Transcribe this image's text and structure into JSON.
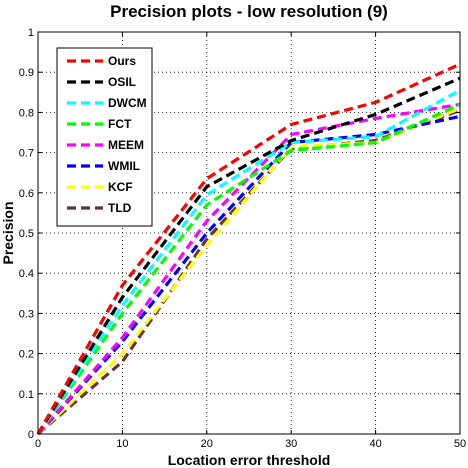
{
  "chart_data": {
    "type": "line",
    "title": "Precision plots - low resolution (9)",
    "xlabel": "Location error threshold",
    "ylabel": "Precision",
    "xlim": [
      0,
      50
    ],
    "ylim": [
      0,
      1
    ],
    "x_ticks": [
      "0",
      "10",
      "20",
      "30",
      "40",
      "50"
    ],
    "y_ticks": [
      "0",
      "0.1",
      "0.2",
      "0.3",
      "0.4",
      "0.5",
      "0.6",
      "0.7",
      "0.8",
      "0.9",
      "1"
    ],
    "grid": true,
    "legend_position": "top-left",
    "x": [
      0,
      10,
      20,
      30,
      40,
      50
    ],
    "series": [
      {
        "name": "Ours",
        "color": "#ff0000",
        "values": [
          0.0,
          0.37,
          0.635,
          0.77,
          0.825,
          0.92
        ]
      },
      {
        "name": "OSIL",
        "color": "#000000",
        "values": [
          0.0,
          0.34,
          0.615,
          0.73,
          0.795,
          0.885
        ]
      },
      {
        "name": "DWCM",
        "color": "#00ffff",
        "values": [
          0.0,
          0.32,
          0.595,
          0.725,
          0.74,
          0.855
        ]
      },
      {
        "name": "FCT",
        "color": "#00ff00",
        "values": [
          0.0,
          0.3,
          0.57,
          0.705,
          0.725,
          0.82
        ]
      },
      {
        "name": "MEEM",
        "color": "#ff00ff",
        "values": [
          0.0,
          0.24,
          0.53,
          0.745,
          0.785,
          0.82
        ]
      },
      {
        "name": "WMIL",
        "color": "#0000ff",
        "values": [
          0.0,
          0.23,
          0.5,
          0.725,
          0.745,
          0.79
        ]
      },
      {
        "name": "KCF",
        "color": "#ffff00",
        "values": [
          0.0,
          0.2,
          0.47,
          0.715,
          0.725,
          0.81
        ]
      },
      {
        "name": "TLD",
        "color": "#663333",
        "values": [
          0.0,
          0.18,
          0.485,
          0.71,
          0.73,
          0.805
        ]
      }
    ]
  }
}
